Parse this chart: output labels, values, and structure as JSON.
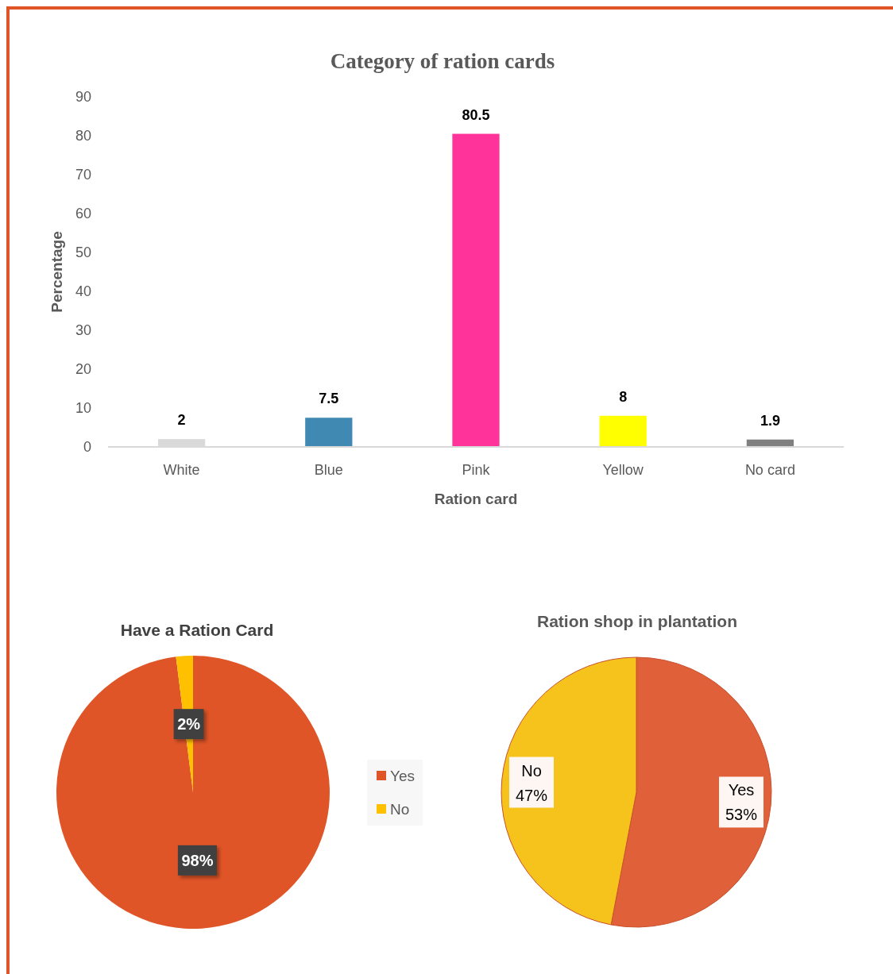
{
  "chart_data": [
    {
      "type": "bar",
      "title": "Category of ration cards",
      "xlabel": "Ration card",
      "ylabel": "Percentage",
      "categories": [
        "White",
        "Blue",
        "Pink",
        "Yellow",
        "No card"
      ],
      "values": [
        2,
        7.5,
        80.5,
        8,
        1.9
      ],
      "colors": [
        "#d9d9d9",
        "#4089b3",
        "#ff3399",
        "#ffff00",
        "#808080"
      ],
      "ylim": [
        0,
        90
      ],
      "yticks": [
        0,
        10,
        20,
        30,
        40,
        50,
        60,
        70,
        80,
        90
      ],
      "data_labels": true
    },
    {
      "type": "pie",
      "title": "Have a Ration Card",
      "categories": [
        "Yes",
        "No"
      ],
      "values": [
        98,
        2
      ],
      "colors": [
        "#e05527",
        "#ffc000"
      ],
      "value_labels": [
        "98%",
        "2%"
      ],
      "legend": "right"
    },
    {
      "type": "pie",
      "title": "Ration shop in plantation",
      "categories": [
        "Yes",
        "No"
      ],
      "values": [
        53,
        47
      ],
      "colors": [
        "#e0603a",
        "#f6c21c"
      ],
      "value_labels": [
        "53%",
        "47%"
      ]
    }
  ]
}
